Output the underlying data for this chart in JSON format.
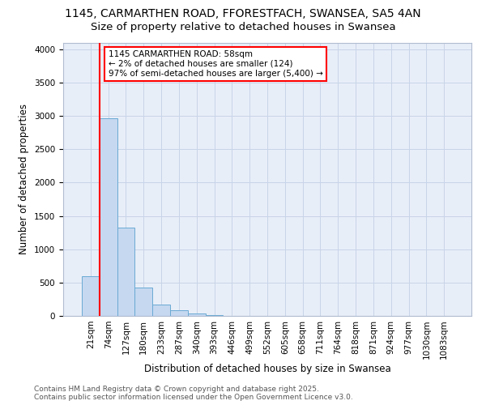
{
  "title_line1": "1145, CARMARTHEN ROAD, FFORESTFACH, SWANSEA, SA5 4AN",
  "title_line2": "Size of property relative to detached houses in Swansea",
  "xlabel": "Distribution of detached houses by size in Swansea",
  "ylabel": "Number of detached properties",
  "bar_labels": [
    "21sqm",
    "74sqm",
    "127sqm",
    "180sqm",
    "233sqm",
    "287sqm",
    "340sqm",
    "393sqm",
    "446sqm",
    "499sqm",
    "552sqm",
    "605sqm",
    "658sqm",
    "711sqm",
    "764sqm",
    "818sqm",
    "871sqm",
    "924sqm",
    "977sqm",
    "1030sqm",
    "1083sqm"
  ],
  "bar_values": [
    600,
    2970,
    1330,
    430,
    175,
    80,
    40,
    8,
    3,
    0,
    0,
    0,
    0,
    0,
    0,
    0,
    0,
    0,
    0,
    0,
    0
  ],
  "bar_color": "#c5d8f0",
  "bar_edge_color": "#6aaad4",
  "grid_color": "#c8d4e8",
  "background_color": "#e8eef8",
  "vline_color": "red",
  "annotation_text": "1145 CARMARTHEN ROAD: 58sqm\n← 2% of detached houses are smaller (124)\n97% of semi-detached houses are larger (5,400) →",
  "annotation_box_edge_color": "red",
  "ylim": [
    0,
    4100
  ],
  "yticks": [
    0,
    500,
    1000,
    1500,
    2000,
    2500,
    3000,
    3500,
    4000
  ],
  "footer_line1": "Contains HM Land Registry data © Crown copyright and database right 2025.",
  "footer_line2": "Contains public sector information licensed under the Open Government Licence v3.0.",
  "title_fontsize": 10,
  "subtitle_fontsize": 9.5,
  "axis_label_fontsize": 8.5,
  "tick_fontsize": 7.5,
  "annotation_fontsize": 7.5,
  "footer_fontsize": 6.5
}
